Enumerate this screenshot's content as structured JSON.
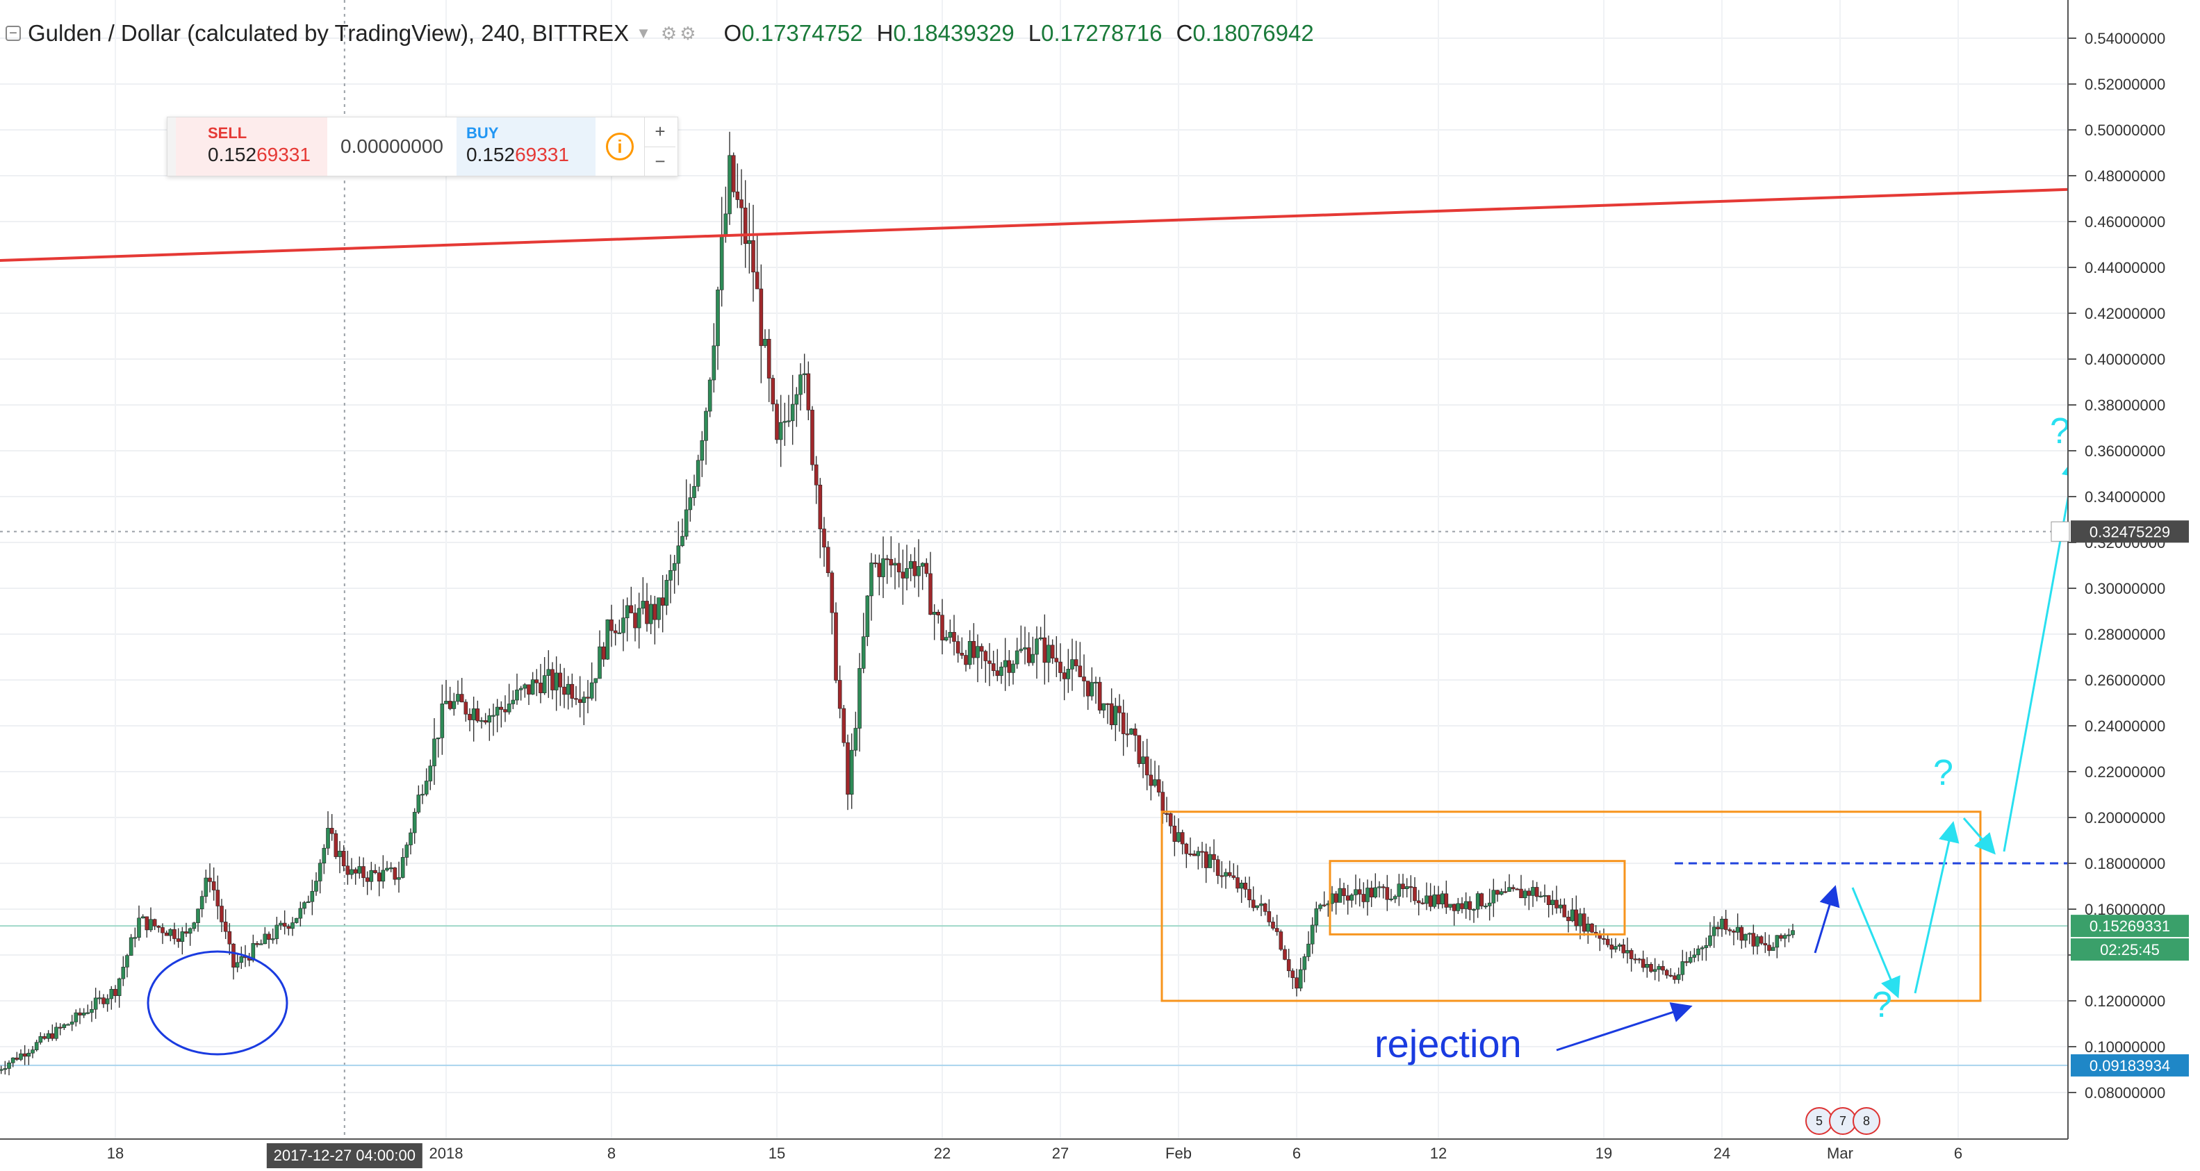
{
  "header": {
    "symbol": "Gulden / Dollar (calculated by TradingView), 240, BITTREX",
    "open_label": "O",
    "open": "0.17374752",
    "high_label": "H",
    "high": "0.18439329",
    "low_label": "L",
    "low": "0.17278716",
    "close_label": "C",
    "close": "0.18076942"
  },
  "trade_panel": {
    "sell_label": "SELL",
    "sell_price_prefix": "0.152",
    "sell_price_suffix": "69331",
    "spread": "0.00000000",
    "buy_label": "BUY",
    "buy_price_prefix": "0.152",
    "buy_price_suffix": "69331",
    "info_icon": "i",
    "plus": "+",
    "minus": "−"
  },
  "events_strip": [
    "5",
    "7",
    "8"
  ],
  "colors": {
    "up": "#2e8b57",
    "down": "#a0282b",
    "resistance": "#e53935",
    "range_box": "#f7941d",
    "annotation_blue": "#1a3be0",
    "projection": "#29e0f0"
  },
  "chart_data": {
    "type": "candlestick",
    "title": "Gulden / Dollar (calculated by TradingView), 240, BITTREX",
    "ylim": [
      0.07,
      0.55
    ],
    "y_ticks": [
      "0.08000000",
      "0.10000000",
      "0.12000000",
      "0.14000000",
      "0.16000000",
      "0.18000000",
      "0.20000000",
      "0.22000000",
      "0.24000000",
      "0.26000000",
      "0.28000000",
      "0.30000000",
      "0.32000000",
      "0.34000000",
      "0.36000000",
      "0.38000000",
      "0.40000000",
      "0.42000000",
      "0.44000000",
      "0.46000000",
      "0.48000000",
      "0.50000000",
      "0.52000000",
      "0.54000000"
    ],
    "x_ticks": [
      "18",
      "2018",
      "8",
      "15",
      "22",
      "27",
      "Feb",
      "6",
      "12",
      "19",
      "24",
      "Mar",
      "6"
    ],
    "crosshair_x_label": "2017-12-27 04:00:00",
    "price_labels": [
      {
        "label": "0.32475229",
        "value": 0.32475,
        "role": "crosshair"
      },
      {
        "label": "0.15269331",
        "value": 0.15269,
        "role": "last_price"
      },
      {
        "label": "02:25:45",
        "role": "countdown"
      },
      {
        "label": "0.09183934",
        "value": 0.09184,
        "role": "support_line"
      }
    ],
    "series_path": [
      {
        "t": "Dec 13",
        "price": 0.09
      },
      {
        "t": "Dec 16",
        "price": 0.11
      },
      {
        "t": "Dec 18",
        "price": 0.125
      },
      {
        "t": "Dec 19",
        "price": 0.155
      },
      {
        "t": "Dec 21",
        "price": 0.148
      },
      {
        "t": "Dec 22",
        "price": 0.175
      },
      {
        "t": "Dec 23",
        "price": 0.135
      },
      {
        "t": "Dec 26",
        "price": 0.16
      },
      {
        "t": "Dec 27",
        "price": 0.192
      },
      {
        "t": "Dec 28",
        "price": 0.175
      },
      {
        "t": "Dec 30",
        "price": 0.175
      },
      {
        "t": "Dec 31",
        "price": 0.215
      },
      {
        "t": "Jan 1",
        "price": 0.25
      },
      {
        "t": "Jan 3",
        "price": 0.245
      },
      {
        "t": "Jan 5",
        "price": 0.26
      },
      {
        "t": "Jan 7",
        "price": 0.255
      },
      {
        "t": "Jan 8",
        "price": 0.285
      },
      {
        "t": "Jan 10",
        "price": 0.29
      },
      {
        "t": "Jan 11",
        "price": 0.32
      },
      {
        "t": "Jan 12",
        "price": 0.38
      },
      {
        "t": "Jan 13",
        "price": 0.48
      },
      {
        "t": "Jan 14",
        "price": 0.44
      },
      {
        "t": "Jan 15",
        "price": 0.36
      },
      {
        "t": "Jan 16",
        "price": 0.4
      },
      {
        "t": "Jan 17",
        "price": 0.32
      },
      {
        "t": "Jan 18",
        "price": 0.21
      },
      {
        "t": "Jan 19",
        "price": 0.31
      },
      {
        "t": "Jan 21",
        "price": 0.31
      },
      {
        "t": "Jan 22",
        "price": 0.28
      },
      {
        "t": "Jan 24",
        "price": 0.265
      },
      {
        "t": "Jan 26",
        "price": 0.275
      },
      {
        "t": "Jan 28",
        "price": 0.26
      },
      {
        "t": "Jan 30",
        "price": 0.235
      },
      {
        "t": "Feb 1",
        "price": 0.19
      },
      {
        "t": "Feb 3",
        "price": 0.175
      },
      {
        "t": "Feb 5",
        "price": 0.155
      },
      {
        "t": "Feb 6",
        "price": 0.125
      },
      {
        "t": "Feb 7",
        "price": 0.165
      },
      {
        "t": "Feb 10",
        "price": 0.168
      },
      {
        "t": "Feb 13",
        "price": 0.162
      },
      {
        "t": "Feb 16",
        "price": 0.168
      },
      {
        "t": "Feb 18",
        "price": 0.155
      },
      {
        "t": "Feb 20",
        "price": 0.14
      },
      {
        "t": "Feb 22",
        "price": 0.13
      },
      {
        "t": "Feb 24",
        "price": 0.155
      },
      {
        "t": "Feb 26",
        "price": 0.142
      },
      {
        "t": "Feb 27",
        "price": 0.152
      }
    ],
    "annotations": {
      "resistance_line": {
        "from": {
          "t": "Dec 13",
          "price": 0.443
        },
        "to": {
          "t": "Mar 8",
          "price": 0.474
        },
        "color": "#e53935"
      },
      "support_line": {
        "price": 0.0918
      },
      "range_box_outer": {
        "t_start": "Jan 31",
        "t_end": "Mar 5",
        "price_low": 0.12,
        "price_high": 0.2025
      },
      "range_box_inner": {
        "t_start": "Feb 7",
        "t_end": "Feb 19",
        "price_low": 0.149,
        "price_high": 0.181
      },
      "dashed_level": {
        "price": 0.18,
        "from": "Feb 19"
      },
      "circle_note": {
        "t": "Dec 22",
        "price": 0.123
      },
      "rejection_text": "rejection",
      "question_marks": [
        "?",
        "?",
        "?"
      ]
    }
  }
}
